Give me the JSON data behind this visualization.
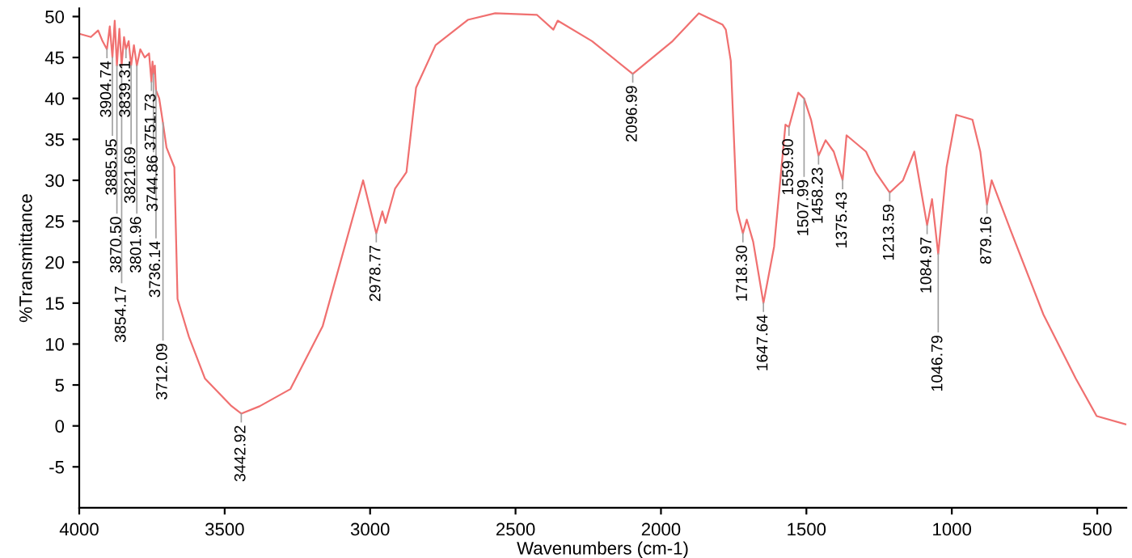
{
  "chart_data": {
    "type": "line",
    "xlabel": "Wavenumbers (cm-1)",
    "ylabel": "%Transmittance",
    "xlim": [
      4000,
      400
    ],
    "ylim": [
      -10,
      51
    ],
    "xticks": [
      4000,
      3500,
      3000,
      2500,
      2000,
      1500,
      1000,
      500
    ],
    "yticks": [
      -5,
      0,
      5,
      10,
      15,
      20,
      25,
      30,
      35,
      40,
      45,
      50
    ],
    "grid": false,
    "marker": "none",
    "line_style": "solid",
    "series": [
      {
        "color": "#f07070",
        "x": [
          4000,
          3960,
          3935,
          3920,
          3904.74,
          3895,
          3885.95,
          3878,
          3870.5,
          3862,
          3854.17,
          3846,
          3839.31,
          3830,
          3821.69,
          3812,
          3801.96,
          3790,
          3775,
          3760,
          3751.73,
          3748,
          3744.86,
          3740,
          3736.14,
          3725,
          3712.09,
          3700,
          3673,
          3662,
          3623,
          3568,
          3479,
          3442.92,
          3380,
          3274,
          3163,
          3024,
          2978.77,
          2958,
          2947,
          2914,
          2875,
          2842,
          2775,
          2664,
          2570,
          2426,
          2370,
          2355,
          2237,
          2096.99,
          1960,
          1870,
          1788,
          1777,
          1760,
          1739,
          1718.3,
          1705,
          1683,
          1647.64,
          1611,
          1572,
          1559.9,
          1528,
          1507.99,
          1484,
          1458.23,
          1434,
          1406,
          1375.43,
          1362,
          1295,
          1262,
          1213.59,
          1168,
          1129,
          1084.97,
          1068,
          1046.79,
          1018,
          985,
          929,
          902,
          879.16,
          863,
          797,
          685,
          574,
          502,
          403
        ],
        "values": [
          47.9,
          47.5,
          48.3,
          47,
          46,
          48.8,
          45,
          49.5,
          44,
          48.5,
          44,
          47.5,
          46,
          47,
          44,
          46.5,
          44,
          46,
          45,
          45.5,
          42,
          44.5,
          43,
          44,
          41,
          40,
          37,
          34,
          31.6,
          15.5,
          10.9,
          5.8,
          2.5,
          1.5,
          2.4,
          4.5,
          12.2,
          30,
          23.5,
          26.2,
          24.8,
          29,
          31,
          41.3,
          46.5,
          49.6,
          50.4,
          50.2,
          48.4,
          49.5,
          47,
          43,
          47,
          50.4,
          49,
          48.4,
          44.6,
          26.4,
          23.5,
          25.2,
          22.5,
          15,
          21.9,
          36.8,
          36.5,
          40.7,
          40,
          37.4,
          33,
          34.9,
          33.5,
          30,
          35.5,
          33.5,
          31,
          28.5,
          30,
          33.5,
          24.5,
          27.7,
          21,
          31.6,
          38,
          37.4,
          33.5,
          27,
          30,
          23.8,
          13.6,
          5.8,
          1.2,
          0.2
        ]
      }
    ],
    "annotations": [
      {
        "text": "3904.74",
        "x": 3904.74,
        "y": 46
      },
      {
        "text": "3885.95",
        "x": 3885.95,
        "y": 45
      },
      {
        "text": "3870.50",
        "x": 3870.5,
        "y": 44
      },
      {
        "text": "3854.17",
        "x": 3854.17,
        "y": 44
      },
      {
        "text": "3839.31",
        "x": 3839.31,
        "y": 46
      },
      {
        "text": "3821.69",
        "x": 3821.69,
        "y": 44
      },
      {
        "text": "3801.96",
        "x": 3801.96,
        "y": 44
      },
      {
        "text": "3751.73",
        "x": 3751.73,
        "y": 42
      },
      {
        "text": "3744.86",
        "x": 3744.86,
        "y": 43
      },
      {
        "text": "3736.14",
        "x": 3736.14,
        "y": 41
      },
      {
        "text": "3712.09",
        "x": 3712.09,
        "y": 37
      },
      {
        "text": "3442.92",
        "x": 3442.92,
        "y": 1.5
      },
      {
        "text": "2978.77",
        "x": 2978.77,
        "y": 23.5
      },
      {
        "text": "2096.99",
        "x": 2096.99,
        "y": 43
      },
      {
        "text": "1718.30",
        "x": 1718.3,
        "y": 23.5
      },
      {
        "text": "1647.64",
        "x": 1647.64,
        "y": 15
      },
      {
        "text": "1559.90",
        "x": 1559.9,
        "y": 36.5
      },
      {
        "text": "1507.99",
        "x": 1507.99,
        "y": 40
      },
      {
        "text": "1458.23",
        "x": 1458.23,
        "y": 33
      },
      {
        "text": "1375.43",
        "x": 1375.43,
        "y": 30
      },
      {
        "text": "1213.59",
        "x": 1213.59,
        "y": 28.5
      },
      {
        "text": "1084.97",
        "x": 1084.97,
        "y": 24.5
      },
      {
        "text": "1046.79",
        "x": 1046.79,
        "y": 21
      },
      {
        "text": "879.16",
        "x": 879.16,
        "y": 27
      }
    ]
  }
}
